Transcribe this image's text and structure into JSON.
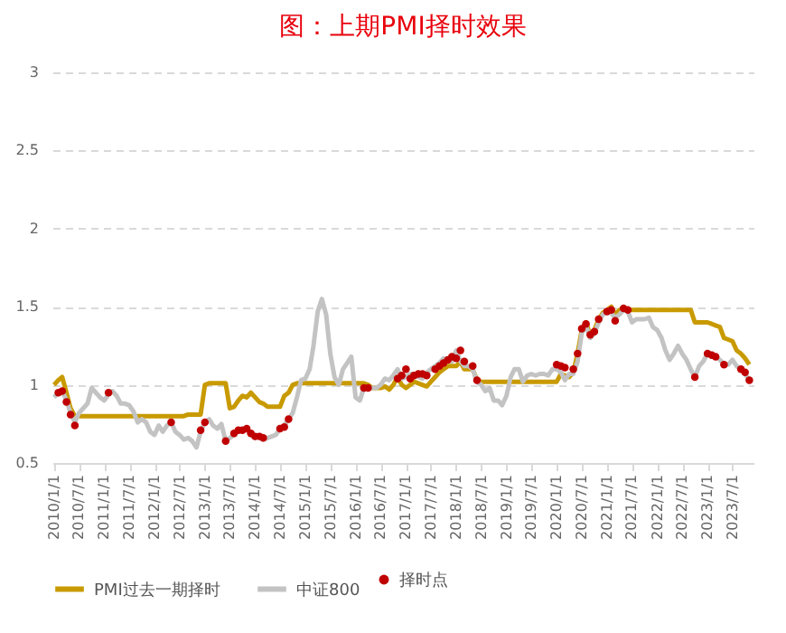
{
  "chart_data": {
    "type": "line",
    "title": "图：上期PMI择时效果",
    "legend": "bottom",
    "grid": "y",
    "x": [
      "2010-01",
      "2010-02",
      "2010-03",
      "2010-04",
      "2010-05",
      "2010-06",
      "2010-07",
      "2010-08",
      "2010-09",
      "2010-10",
      "2010-11",
      "2010-12",
      "2011-01",
      "2011-02",
      "2011-03",
      "2011-04",
      "2011-05",
      "2011-06",
      "2011-07",
      "2011-08",
      "2011-09",
      "2011-10",
      "2011-11",
      "2011-12",
      "2012-01",
      "2012-02",
      "2012-03",
      "2012-04",
      "2012-05",
      "2012-06",
      "2012-07",
      "2012-08",
      "2012-09",
      "2012-10",
      "2012-11",
      "2012-12",
      "2013-01",
      "2013-02",
      "2013-03",
      "2013-04",
      "2013-05",
      "2013-06",
      "2013-07",
      "2013-08",
      "2013-09",
      "2013-10",
      "2013-11",
      "2013-12",
      "2014-01",
      "2014-02",
      "2014-03",
      "2014-04",
      "2014-05",
      "2014-06",
      "2014-07",
      "2014-08",
      "2014-09",
      "2014-10",
      "2014-11",
      "2014-12",
      "2015-01",
      "2015-02",
      "2015-03",
      "2015-04",
      "2015-05",
      "2015-06",
      "2015-07",
      "2015-08",
      "2015-09",
      "2015-10",
      "2015-11",
      "2015-12",
      "2016-01",
      "2016-02",
      "2016-03",
      "2016-04",
      "2016-05",
      "2016-06",
      "2016-07",
      "2016-08",
      "2016-09",
      "2016-10",
      "2016-11",
      "2016-12",
      "2017-01",
      "2017-02",
      "2017-03",
      "2017-04",
      "2017-05",
      "2017-06",
      "2017-07",
      "2017-08",
      "2017-09",
      "2017-10",
      "2017-11",
      "2017-12",
      "2018-01",
      "2018-02",
      "2018-03",
      "2018-04",
      "2018-05",
      "2018-06",
      "2018-07",
      "2018-08",
      "2018-09",
      "2018-10",
      "2018-11",
      "2018-12",
      "2019-01",
      "2019-02",
      "2019-03",
      "2019-04",
      "2019-05",
      "2019-06",
      "2019-07",
      "2019-08",
      "2019-09",
      "2019-10",
      "2019-11",
      "2019-12",
      "2020-01",
      "2020-02",
      "2020-03",
      "2020-04",
      "2020-05",
      "2020-06",
      "2020-07",
      "2020-08",
      "2020-09",
      "2020-10",
      "2020-11",
      "2020-12",
      "2021-01",
      "2021-02",
      "2021-03",
      "2021-04",
      "2021-05",
      "2021-06",
      "2021-07",
      "2021-08",
      "2021-09",
      "2021-10",
      "2021-11",
      "2021-12",
      "2022-01",
      "2022-02",
      "2022-03",
      "2022-04",
      "2022-05",
      "2022-06",
      "2022-07",
      "2022-08",
      "2022-09",
      "2022-10",
      "2022-11",
      "2022-12",
      "2023-01",
      "2023-02",
      "2023-03",
      "2023-04",
      "2023-05",
      "2023-06",
      "2023-07",
      "2023-08",
      "2023-09",
      "2023-10",
      "2023-11"
    ],
    "xlim": [
      "2009-12-20",
      "2023-12-01"
    ],
    "xticks": [
      {
        "value": "2010-01-01",
        "label": "2010/1/1"
      },
      {
        "value": "2010-07-01",
        "label": "2010/7/1"
      },
      {
        "value": "2011-01-01",
        "label": "2011/1/1"
      },
      {
        "value": "2011-07-01",
        "label": "2011/7/1"
      },
      {
        "value": "2012-01-01",
        "label": "2012/1/1"
      },
      {
        "value": "2012-07-01",
        "label": "2012/7/1"
      },
      {
        "value": "2013-01-01",
        "label": "2013/1/1"
      },
      {
        "value": "2013-07-01",
        "label": "2013/7/1"
      },
      {
        "value": "2014-01-01",
        "label": "2014/1/1"
      },
      {
        "value": "2014-07-01",
        "label": "2014/7/1"
      },
      {
        "value": "2015-01-01",
        "label": "2015/1/1"
      },
      {
        "value": "2015-07-01",
        "label": "2015/7/1"
      },
      {
        "value": "2016-01-01",
        "label": "2016/1/1"
      },
      {
        "value": "2016-07-01",
        "label": "2016/7/1"
      },
      {
        "value": "2017-01-01",
        "label": "2017/1/1"
      },
      {
        "value": "2017-07-01",
        "label": "2017/7/1"
      },
      {
        "value": "2018-01-01",
        "label": "2018/1/1"
      },
      {
        "value": "2018-07-01",
        "label": "2018/7/1"
      },
      {
        "value": "2019-01-01",
        "label": "2019/1/1"
      },
      {
        "value": "2019-07-01",
        "label": "2019/7/1"
      },
      {
        "value": "2020-01-01",
        "label": "2020/1/1"
      },
      {
        "value": "2020-07-01",
        "label": "2020/7/1"
      },
      {
        "value": "2021-01-01",
        "label": "2021/1/1"
      },
      {
        "value": "2021-07-01",
        "label": "2021/7/1"
      },
      {
        "value": "2022-01-01",
        "label": "2022/1/1"
      },
      {
        "value": "2022-07-01",
        "label": "2022/7/1"
      },
      {
        "value": "2023-01-01",
        "label": "2023/1/1"
      },
      {
        "value": "2023-07-01",
        "label": "2023/7/1"
      }
    ],
    "ylim": [
      0.5,
      3
    ],
    "yticks": [
      0.5,
      1,
      1.5,
      2,
      2.5,
      3
    ],
    "series": [
      {
        "name": "PMI过去一期择时",
        "color": "#c89a00",
        "values": [
          1.0,
          1.03,
          1.05,
          0.95,
          0.85,
          0.8,
          0.8,
          0.8,
          0.8,
          0.8,
          0.8,
          0.8,
          0.8,
          0.8,
          0.8,
          0.8,
          0.8,
          0.8,
          0.8,
          0.8,
          0.8,
          0.8,
          0.8,
          0.8,
          0.8,
          0.8,
          0.8,
          0.8,
          0.8,
          0.8,
          0.8,
          0.8,
          0.81,
          0.81,
          0.81,
          0.81,
          1.0,
          1.01,
          1.01,
          1.01,
          1.01,
          1.01,
          0.85,
          0.86,
          0.9,
          0.93,
          0.92,
          0.95,
          0.92,
          0.89,
          0.88,
          0.86,
          0.86,
          0.86,
          0.86,
          0.93,
          0.95,
          1.0,
          1.01,
          1.01,
          1.01,
          1.01,
          1.01,
          1.01,
          1.01,
          1.01,
          1.01,
          1.01,
          1.01,
          1.01,
          1.01,
          1.01,
          1.01,
          1.01,
          1.01,
          1.0,
          0.98,
          0.98,
          0.98,
          0.99,
          0.97,
          1.0,
          1.05,
          1.0,
          0.98,
          1.0,
          1.02,
          1.01,
          1.0,
          0.99,
          1.02,
          1.05,
          1.08,
          1.1,
          1.12,
          1.12,
          1.12,
          1.15,
          1.1,
          1.1,
          1.1,
          1.03,
          1.02,
          1.02,
          1.02,
          1.02,
          1.02,
          1.02,
          1.02,
          1.02,
          1.02,
          1.02,
          1.02,
          1.02,
          1.02,
          1.02,
          1.02,
          1.02,
          1.02,
          1.02,
          1.02,
          1.07,
          1.06,
          1.05,
          1.08,
          1.2,
          1.35,
          1.4,
          1.32,
          1.35,
          1.42,
          1.46,
          1.48,
          1.5,
          1.45,
          1.48,
          1.48,
          1.48,
          1.48,
          1.48,
          1.48,
          1.48,
          1.48,
          1.48,
          1.48,
          1.48,
          1.48,
          1.48,
          1.48,
          1.48,
          1.48,
          1.48,
          1.48,
          1.4,
          1.4,
          1.4,
          1.4,
          1.39,
          1.38,
          1.37,
          1.3,
          1.29,
          1.28,
          1.22,
          1.2,
          1.17,
          1.13
        ]
      },
      {
        "name": "中证800",
        "color": "#c3c3c3",
        "values": [
          0.92,
          0.95,
          0.96,
          0.9,
          0.82,
          0.76,
          0.82,
          0.85,
          0.88,
          0.98,
          0.95,
          0.92,
          0.9,
          0.94,
          0.96,
          0.93,
          0.88,
          0.88,
          0.87,
          0.83,
          0.76,
          0.78,
          0.76,
          0.7,
          0.68,
          0.74,
          0.7,
          0.74,
          0.76,
          0.7,
          0.68,
          0.65,
          0.66,
          0.64,
          0.6,
          0.7,
          0.76,
          0.78,
          0.74,
          0.72,
          0.75,
          0.64,
          0.66,
          0.68,
          0.71,
          0.71,
          0.72,
          0.68,
          0.66,
          0.67,
          0.65,
          0.66,
          0.67,
          0.68,
          0.72,
          0.74,
          0.78,
          0.82,
          0.92,
          1.03,
          1.04,
          1.1,
          1.25,
          1.47,
          1.55,
          1.45,
          1.2,
          1.05,
          1.0,
          1.1,
          1.14,
          1.18,
          0.92,
          0.9,
          0.98,
          0.98,
          0.98,
          0.98,
          1.0,
          1.04,
          1.03,
          1.06,
          1.1,
          1.04,
          1.05,
          1.07,
          1.07,
          1.05,
          1.04,
          1.08,
          1.1,
          1.12,
          1.14,
          1.17,
          1.16,
          1.15,
          1.22,
          1.15,
          1.12,
          1.12,
          1.1,
          1.02,
          1.0,
          0.96,
          0.98,
          0.9,
          0.9,
          0.87,
          0.93,
          1.05,
          1.1,
          1.1,
          1.02,
          1.06,
          1.07,
          1.06,
          1.07,
          1.07,
          1.06,
          1.1,
          1.1,
          1.08,
          1.03,
          1.07,
          1.07,
          1.15,
          1.33,
          1.38,
          1.3,
          1.33,
          1.4,
          1.45,
          1.47,
          1.46,
          1.43,
          1.45,
          1.48,
          1.47,
          1.4,
          1.42,
          1.42,
          1.42,
          1.43,
          1.37,
          1.35,
          1.3,
          1.22,
          1.16,
          1.2,
          1.25,
          1.2,
          1.16,
          1.1,
          1.05,
          1.12,
          1.15,
          1.2,
          1.2,
          1.18,
          1.16,
          1.13,
          1.13,
          1.16,
          1.12,
          1.1,
          1.07,
          1.03
        ]
      },
      {
        "name": "择时点",
        "color": "#c00000",
        "type": "scatter",
        "x": [
          "2010-02",
          "2010-03",
          "2010-04",
          "2010-05",
          "2010-06",
          "2011-02",
          "2012-05",
          "2012-12",
          "2013-01",
          "2013-06",
          "2013-08",
          "2013-09",
          "2013-10",
          "2013-11",
          "2013-12",
          "2014-01",
          "2014-02",
          "2014-03",
          "2014-07",
          "2014-08",
          "2014-09",
          "2016-03",
          "2016-04",
          "2016-11",
          "2016-12",
          "2017-01",
          "2017-02",
          "2017-03",
          "2017-04",
          "2017-05",
          "2017-06",
          "2017-08",
          "2017-09",
          "2017-10",
          "2017-11",
          "2017-12",
          "2018-01",
          "2018-02",
          "2018-03",
          "2018-05",
          "2018-06",
          "2020-01",
          "2020-02",
          "2020-03",
          "2020-05",
          "2020-06",
          "2020-07",
          "2020-08",
          "2020-09",
          "2020-10",
          "2020-11",
          "2021-01",
          "2021-02",
          "2021-03",
          "2021-05",
          "2021-06",
          "2022-10",
          "2023-01",
          "2023-02",
          "2023-03",
          "2023-05",
          "2023-09",
          "2023-10",
          "2023-11"
        ],
        "values": [
          0.95,
          0.96,
          0.89,
          0.81,
          0.74,
          0.95,
          0.76,
          0.71,
          0.76,
          0.64,
          0.69,
          0.71,
          0.71,
          0.72,
          0.69,
          0.67,
          0.67,
          0.66,
          0.72,
          0.73,
          0.78,
          0.98,
          0.98,
          1.04,
          1.06,
          1.1,
          1.04,
          1.06,
          1.07,
          1.07,
          1.06,
          1.1,
          1.12,
          1.14,
          1.16,
          1.18,
          1.17,
          1.22,
          1.15,
          1.12,
          1.03,
          1.13,
          1.12,
          1.11,
          1.1,
          1.2,
          1.36,
          1.39,
          1.32,
          1.34,
          1.42,
          1.47,
          1.48,
          1.41,
          1.49,
          1.48,
          1.05,
          1.2,
          1.19,
          1.18,
          1.13,
          1.1,
          1.08,
          1.03
        ]
      }
    ]
  }
}
